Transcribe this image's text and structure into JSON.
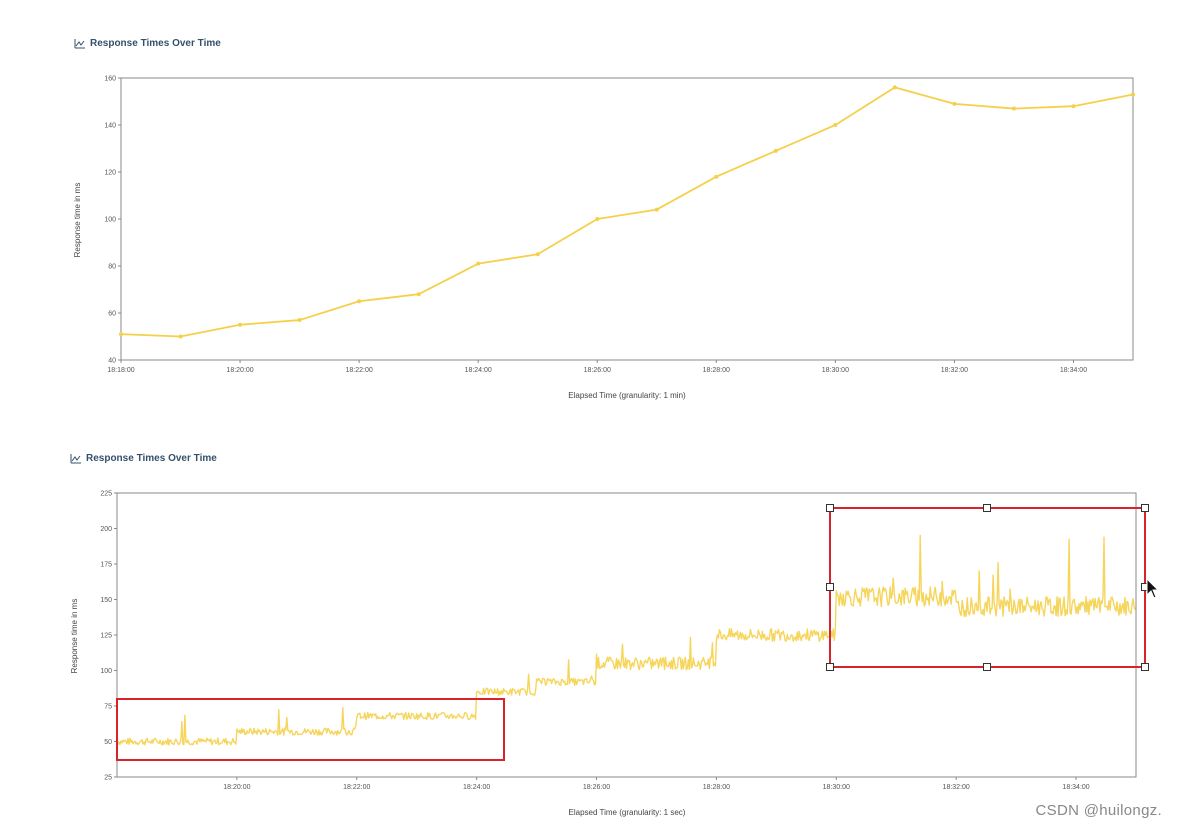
{
  "charts": [
    {
      "title": "Response Times Over Time",
      "xlabel": "Elapsed Time (granularity: 1 min)",
      "ylabel": "Response time in ms"
    },
    {
      "title": "Response Times Over Time",
      "xlabel": "Elapsed Time (granularity: 1 sec)",
      "ylabel": "Response time in ms"
    }
  ],
  "watermark": "CSDN @huilongz.",
  "colors": {
    "series": "#f5d04a",
    "selection": "#d8232a",
    "frame": "#888888"
  },
  "chart_data": [
    {
      "type": "line",
      "title": "Response Times Over Time",
      "xlabel": "Elapsed Time (granularity: 1 min)",
      "ylabel": "Response time in ms",
      "x_ticks": [
        "18:18:00",
        "18:20:00",
        "18:22:00",
        "18:24:00",
        "18:26:00",
        "18:28:00",
        "18:30:00",
        "18:32:00",
        "18:34:00"
      ],
      "y_ticks": [
        "40",
        "60",
        "80",
        "100",
        "120",
        "140",
        "160"
      ],
      "ylim": [
        40,
        160
      ],
      "x": [
        "18:18:00",
        "18:19:00",
        "18:20:00",
        "18:21:00",
        "18:22:00",
        "18:23:00",
        "18:24:00",
        "18:25:00",
        "18:26:00",
        "18:27:00",
        "18:28:00",
        "18:29:00",
        "18:30:00",
        "18:31:00",
        "18:32:00",
        "18:33:00",
        "18:34:00",
        "18:35:00"
      ],
      "series": [
        {
          "values": [
            51,
            50,
            55,
            57,
            65,
            68,
            81,
            85,
            100,
            104,
            118,
            129,
            140,
            156,
            149,
            147,
            148,
            153
          ]
        }
      ],
      "grid": false
    },
    {
      "type": "line",
      "title": "Response Times Over Time",
      "xlabel": "Elapsed Time (granularity: 1 sec)",
      "ylabel": "Response time in ms",
      "x_ticks": [
        "18:20:00",
        "18:22:00",
        "18:24:00",
        "18:26:00",
        "18:28:00",
        "18:30:00",
        "18:32:00",
        "18:34:00"
      ],
      "y_ticks": [
        "25",
        "50",
        "75",
        "100",
        "125",
        "150",
        "175",
        "200",
        "225"
      ],
      "ylim": [
        25,
        225
      ],
      "segments": [
        {
          "from": "18:18:00",
          "to": "18:20:00",
          "level": 50
        },
        {
          "from": "18:20:00",
          "to": "18:22:00",
          "level": 57
        },
        {
          "from": "18:22:00",
          "to": "18:24:00",
          "level": 68
        },
        {
          "from": "18:24:00",
          "to": "18:25:00",
          "level": 85
        },
        {
          "from": "18:25:00",
          "to": "18:26:00",
          "level": 92
        },
        {
          "from": "18:26:00",
          "to": "18:28:00",
          "level": 105
        },
        {
          "from": "18:28:00",
          "to": "18:30:00",
          "level": 125
        },
        {
          "from": "18:30:00",
          "to": "18:32:00",
          "level": 152
        },
        {
          "from": "18:32:00",
          "to": "18:35:00",
          "level": 145
        }
      ],
      "grid": false
    }
  ]
}
